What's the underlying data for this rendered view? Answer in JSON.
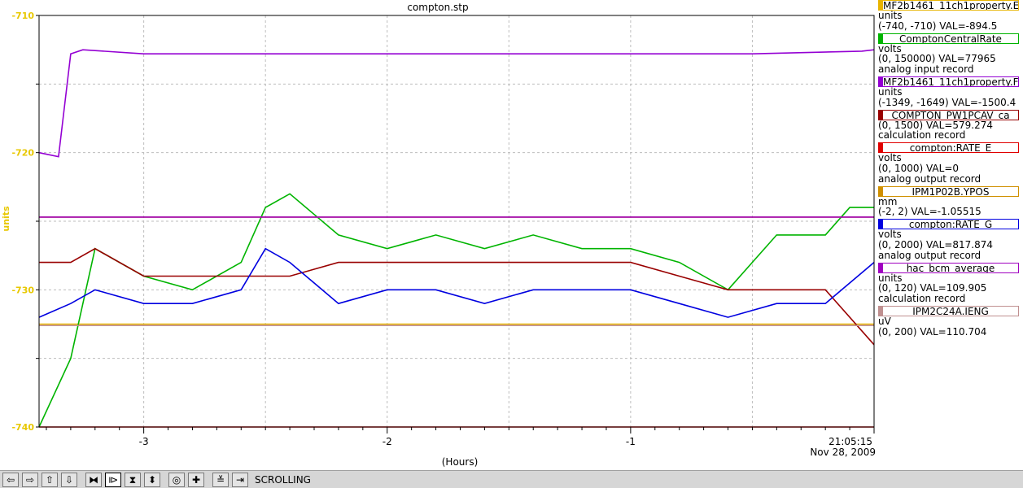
{
  "chart_data": {
    "type": "line",
    "title": "compton.stp",
    "xlabel": "(Hours)",
    "ylabel": "units",
    "xlim": [
      -3.43,
      0
    ],
    "ylim": [
      -740,
      -710
    ],
    "x_ticks": [
      -3,
      -2,
      -1
    ],
    "y_ticks": [
      -710,
      -720,
      -730,
      -740
    ],
    "end_time": "21:05:15",
    "end_date": "Nov 28, 2009",
    "grid": true,
    "series": [
      {
        "name": "MF2b1461_11ch1property.E",
        "color": "#e8b400",
        "unit": "units",
        "range": "(-740, -710)",
        "value": "VAL=-894.5",
        "record": "",
        "x": [
          -3.43,
          -3.2,
          -3.0,
          -2.8,
          -2.6,
          -2.4,
          -2.2,
          -2.0,
          -1.5,
          -1.0,
          -0.5,
          0.0
        ],
        "y": [
          -732.5,
          -732.5,
          -732.5,
          -732.5,
          -732.5,
          -732.5,
          -732.5,
          -732.5,
          -732.5,
          -732.5,
          -732.5,
          -732.5
        ]
      },
      {
        "name": "ComptonCentralRate",
        "color": "#00b400",
        "unit": "volts",
        "range": "(0, 150000)",
        "value": "VAL=77965",
        "record": "analog input record",
        "x": [
          -3.43,
          -3.3,
          -3.2,
          -3.0,
          -2.8,
          -2.6,
          -2.5,
          -2.4,
          -2.2,
          -2.0,
          -1.8,
          -1.6,
          -1.4,
          -1.2,
          -1.0,
          -0.8,
          -0.6,
          -0.4,
          -0.2,
          -0.1,
          0.0
        ],
        "y": [
          -740,
          -735,
          -727,
          -729,
          -730,
          -728,
          -724,
          -723,
          -726,
          -727,
          -726,
          -727,
          -726,
          -727,
          -727,
          -728,
          -730,
          -726,
          -726,
          -724,
          -724
        ]
      },
      {
        "name": "MF2b1461_11ch1property.F",
        "color": "#9400d3",
        "unit": "units",
        "range": "(-1349, -1649)",
        "value": "VAL=-1500.4",
        "record": "",
        "x": [
          -3.43,
          -3.35,
          -3.3,
          -3.25,
          -3.0,
          -2.5,
          -2.0,
          -1.5,
          -1.0,
          -0.5,
          -0.05,
          0.0
        ],
        "y": [
          -720,
          -720.3,
          -712.8,
          -712.5,
          -712.8,
          -712.8,
          -712.8,
          -712.8,
          -712.8,
          -712.8,
          -712.6,
          -712.5
        ]
      },
      {
        "name": "COMPTON_PW1PCAV_ca",
        "color": "#990000",
        "unit": "",
        "range": "(0, 1500)",
        "value": "VAL=579.274",
        "record": "calculation record",
        "x": [
          -3.43,
          -3.3,
          -3.2,
          -3.0,
          -2.8,
          -2.6,
          -2.4,
          -2.2,
          -2.0,
          -1.8,
          -1.6,
          -1.4,
          -1.2,
          -1.0,
          -0.8,
          -0.6,
          -0.4,
          -0.2,
          0.0
        ],
        "y": [
          -728,
          -728,
          -727,
          -729,
          -729,
          -729,
          -729,
          -728,
          -728,
          -728,
          -728,
          -728,
          -728,
          -728,
          -729,
          -730,
          -730,
          -730,
          -734
        ]
      },
      {
        "name": "compton:RATE_E",
        "color": "#e00000",
        "unit": "volts",
        "range": "(0, 1000)",
        "value": "VAL=0",
        "record": "analog output record",
        "x": [
          -3.43,
          0.0
        ],
        "y": [
          -740,
          -740
        ]
      },
      {
        "name": "IPM1P02B.YPOS",
        "color": "#d09000",
        "unit": "mm",
        "range": "(-2, 2)",
        "value": "VAL=-1.05515",
        "record": "",
        "x": [
          -3.43,
          0.0
        ],
        "y": [
          -724.7,
          -724.7
        ]
      },
      {
        "name": "compton:RATE_G",
        "color": "#0000e0",
        "unit": "volts",
        "range": "(0, 2000)",
        "value": "VAL=817.874",
        "record": "analog output record",
        "x": [
          -3.43,
          -3.3,
          -3.2,
          -3.0,
          -2.8,
          -2.6,
          -2.5,
          -2.4,
          -2.2,
          -2.0,
          -1.8,
          -1.6,
          -1.4,
          -1.2,
          -1.0,
          -0.8,
          -0.6,
          -0.4,
          -0.2,
          0.0
        ],
        "y": [
          -732,
          -731,
          -730,
          -731,
          -731,
          -730,
          -727,
          -728,
          -731,
          -730,
          -730,
          -731,
          -730,
          -730,
          -730,
          -731,
          -732,
          -731,
          -731,
          -728
        ]
      },
      {
        "name": "hac_bcm_average",
        "color": "#a000c0",
        "unit": "units",
        "range": "(0, 120)",
        "value": "VAL=109.905",
        "record": "calculation record",
        "x": [
          -3.43,
          0.0
        ],
        "y": [
          -724.7,
          -724.7
        ]
      },
      {
        "name": "IPM2C24A.IENG",
        "color": "#c09090",
        "unit": "uV",
        "range": "(0, 200)",
        "value": "VAL=110.704",
        "record": "",
        "x": [
          -3.43,
          0.0
        ],
        "y": [
          -732.6,
          -732.6
        ]
      }
    ]
  },
  "toolbar": {
    "buttons": [
      {
        "name": "scroll-left-button",
        "glyph": "⇦"
      },
      {
        "name": "scroll-right-button",
        "glyph": "⇨"
      },
      {
        "name": "scroll-up-button",
        "glyph": "⇧"
      },
      {
        "name": "scroll-down-button",
        "glyph": "⇩"
      },
      {
        "name": "zoom-in-x-button",
        "glyph": "⧓"
      },
      {
        "name": "zoom-out-x-button",
        "glyph": "⧐"
      },
      {
        "name": "zoom-in-y-button",
        "glyph": "⧗"
      },
      {
        "name": "zoom-out-y-button",
        "glyph": "⬍"
      },
      {
        "name": "zoom-box-button",
        "glyph": "◎"
      },
      {
        "name": "crosshair-button",
        "glyph": "✚"
      },
      {
        "name": "autoscale-button",
        "glyph": "≚"
      },
      {
        "name": "scroll-to-end-button",
        "glyph": "⇥"
      }
    ],
    "status": "SCROLLING"
  }
}
